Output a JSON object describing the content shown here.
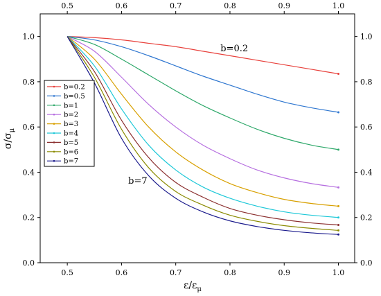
{
  "chart_data": {
    "type": "line",
    "xlabel": "ε/ε",
    "xlabel_sub": "μ",
    "ylabel": "σ/σ",
    "ylabel_sub": "μ",
    "xlim": [
      0.45,
      1.03
    ],
    "ylim": [
      0.0,
      1.1
    ],
    "x_ticks": [
      0.5,
      0.6,
      0.7,
      0.8,
      0.9,
      1.0
    ],
    "x_tick_labels": [
      "0.5",
      "0.6",
      "0.7",
      "0.8",
      "0.9",
      "1.0"
    ],
    "y_ticks": [
      0.0,
      0.2,
      0.4,
      0.6,
      0.8,
      1.0
    ],
    "y_tick_labels": [
      "0.0",
      "0.2",
      "0.4",
      "0.6",
      "0.8",
      "1.0"
    ],
    "grid": false,
    "legend_placement": "left",
    "x": [
      0.5,
      0.55,
      0.6,
      0.65,
      0.7,
      0.75,
      0.8,
      0.85,
      0.9,
      0.95,
      1.0
    ],
    "series": [
      {
        "name": "b=0.2",
        "color": "#e8413c",
        "values": [
          1.0,
          0.995,
          0.985,
          0.97,
          0.955,
          0.935,
          0.915,
          0.895,
          0.875,
          0.855,
          0.835
        ]
      },
      {
        "name": "b=0.5",
        "color": "#2f77d0",
        "values": [
          1.0,
          0.985,
          0.955,
          0.915,
          0.87,
          0.825,
          0.785,
          0.745,
          0.71,
          0.685,
          0.665
        ]
      },
      {
        "name": "b=1",
        "color": "#2ea86a",
        "values": [
          1.0,
          0.965,
          0.9,
          0.83,
          0.76,
          0.695,
          0.64,
          0.59,
          0.55,
          0.52,
          0.5
        ]
      },
      {
        "name": "b=2",
        "color": "#b66fe0",
        "values": [
          1.0,
          0.935,
          0.82,
          0.7,
          0.6,
          0.52,
          0.46,
          0.41,
          0.375,
          0.35,
          0.333
        ]
      },
      {
        "name": "b=3",
        "color": "#d8a000",
        "values": [
          1.0,
          0.9,
          0.745,
          0.6,
          0.49,
          0.41,
          0.35,
          0.31,
          0.28,
          0.262,
          0.25
        ]
      },
      {
        "name": "b=4",
        "color": "#1ec8d8",
        "values": [
          1.0,
          0.87,
          0.68,
          0.52,
          0.41,
          0.335,
          0.285,
          0.25,
          0.225,
          0.21,
          0.2
        ]
      },
      {
        "name": "b=5",
        "color": "#8b2f2f",
        "values": [
          1.0,
          0.845,
          0.63,
          0.465,
          0.355,
          0.29,
          0.24,
          0.21,
          0.19,
          0.176,
          0.167
        ]
      },
      {
        "name": "b=6",
        "color": "#8a8a00",
        "values": [
          1.0,
          0.82,
          0.59,
          0.42,
          0.315,
          0.255,
          0.21,
          0.183,
          0.164,
          0.152,
          0.143
        ]
      },
      {
        "name": "b=7",
        "color": "#1a1a8c",
        "values": [
          1.0,
          0.795,
          0.55,
          0.385,
          0.285,
          0.225,
          0.185,
          0.16,
          0.143,
          0.132,
          0.125
        ]
      }
    ],
    "annotations": [
      {
        "text": "b=0.2",
        "x": 0.808,
        "y": 0.935
      },
      {
        "text": "b=7",
        "x": 0.63,
        "y": 0.35
      }
    ]
  }
}
